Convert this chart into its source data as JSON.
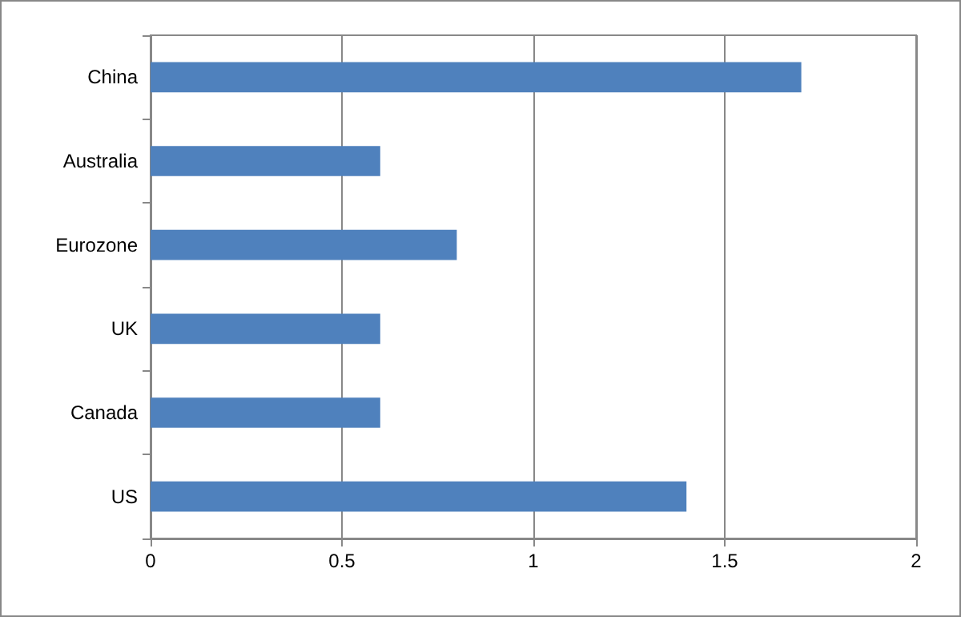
{
  "chart_data": {
    "type": "bar",
    "orientation": "horizontal",
    "categories": [
      "China",
      "Australia",
      "Eurozone",
      "UK",
      "Canada",
      "US"
    ],
    "values": [
      1.7,
      0.6,
      0.8,
      0.6,
      0.6,
      1.4
    ],
    "color": "#4f81bd",
    "xlim": [
      0,
      2
    ],
    "xticks": [
      0,
      0.5,
      1,
      1.5,
      2
    ],
    "grid": "x"
  }
}
